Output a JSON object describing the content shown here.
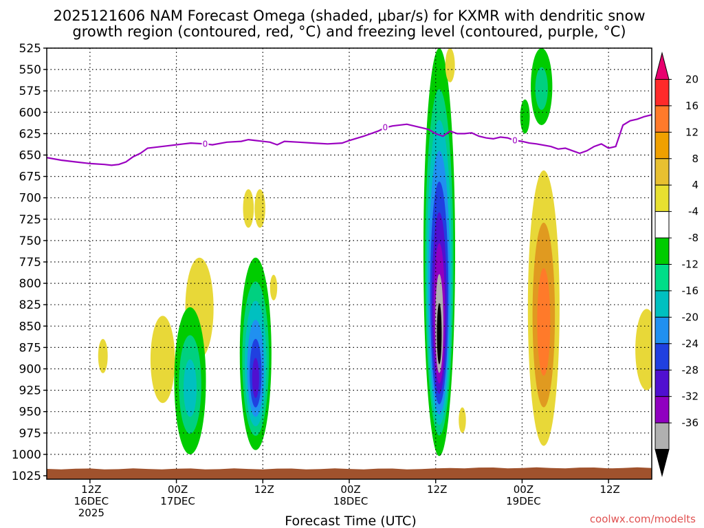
{
  "chart_data": {
    "type": "heatmap",
    "title_line1": "2025121606 NAM Forecast Omega (shaded, μbar/s) for KXMR with dendritic snow",
    "title_line2": "growth region (contoured, red, °C) and freezing level (contoured, purple, °C)",
    "xlabel": "Forecast Time (UTC)",
    "credit": "coolwx.com/modelts",
    "y_axis": {
      "label": "",
      "ticks": [
        "525",
        "550",
        "575",
        "600",
        "625",
        "650",
        "675",
        "700",
        "725",
        "750",
        "775",
        "800",
        "825",
        "850",
        "875",
        "900",
        "925",
        "950",
        "975",
        "1000",
        "1025"
      ],
      "range": [
        525,
        1025
      ],
      "inverted": true
    },
    "x_axis": {
      "range_hours": [
        0,
        84
      ],
      "ticks": [
        {
          "h": 6,
          "line1": "12Z",
          "line2": "16DEC",
          "line3": "2025"
        },
        {
          "h": 18,
          "line1": "00Z",
          "line2": "17DEC",
          "line3": ""
        },
        {
          "h": 30,
          "line1": "12Z",
          "line2": "",
          "line3": ""
        },
        {
          "h": 42,
          "line1": "00Z",
          "line2": "18DEC",
          "line3": ""
        },
        {
          "h": 54,
          "line1": "12Z",
          "line2": "",
          "line3": ""
        },
        {
          "h": 66,
          "line1": "00Z",
          "line2": "19DEC",
          "line3": ""
        },
        {
          "h": 78,
          "line1": "12Z",
          "line2": "",
          "line3": ""
        }
      ]
    },
    "grid": true,
    "colorbar": {
      "labels": [
        "20",
        "16",
        "12",
        "8",
        "4",
        "-4",
        "-8",
        "-12",
        "-16",
        "-20",
        "-24",
        "-28",
        "-32",
        "-36"
      ],
      "colors": [
        "#e8006e",
        "#ff2a2a",
        "#ff7a2a",
        "#f0a000",
        "#e8c030",
        "#e8e030",
        "#ffffff",
        "#00cc00",
        "#00dd88",
        "#00c0c0",
        "#2090f0",
        "#2040e0",
        "#5010d0",
        "#9000c0",
        "#b0b0b0",
        "#000000"
      ]
    },
    "freezing_level": {
      "color": "#9a00c0",
      "label": "0",
      "points_hour_hpa": [
        [
          0,
          653
        ],
        [
          2,
          656
        ],
        [
          4,
          658
        ],
        [
          6,
          660
        ],
        [
          8,
          661
        ],
        [
          9,
          662
        ],
        [
          10,
          661
        ],
        [
          11,
          658
        ],
        [
          12,
          652
        ],
        [
          13,
          648
        ],
        [
          14,
          642
        ],
        [
          15,
          641
        ],
        [
          17,
          639
        ],
        [
          19,
          637
        ],
        [
          20,
          636
        ],
        [
          22,
          637
        ],
        [
          23,
          638
        ],
        [
          25,
          635
        ],
        [
          27,
          634
        ],
        [
          28,
          632
        ],
        [
          29,
          633
        ],
        [
          31,
          635
        ],
        [
          32,
          638
        ],
        [
          33,
          634
        ],
        [
          35,
          635
        ],
        [
          37,
          636
        ],
        [
          39,
          637
        ],
        [
          41,
          636
        ],
        [
          42,
          633
        ],
        [
          44,
          628
        ],
        [
          46,
          622
        ],
        [
          47,
          618
        ],
        [
          48,
          616
        ],
        [
          50,
          614
        ],
        [
          52,
          618
        ],
        [
          53,
          620
        ],
        [
          54,
          625
        ],
        [
          55,
          628
        ],
        [
          56,
          622
        ],
        [
          57,
          625
        ],
        [
          58,
          625
        ],
        [
          59,
          624
        ],
        [
          60,
          628
        ],
        [
          61,
          630
        ],
        [
          62,
          631
        ],
        [
          63,
          629
        ],
        [
          64,
          630
        ],
        [
          65,
          633
        ],
        [
          66,
          634
        ],
        [
          67,
          636
        ],
        [
          68,
          637
        ],
        [
          70,
          640
        ],
        [
          71,
          643
        ],
        [
          72,
          642
        ],
        [
          73,
          645
        ],
        [
          74,
          648
        ],
        [
          75,
          645
        ],
        [
          76,
          640
        ],
        [
          77,
          637
        ],
        [
          78,
          642
        ],
        [
          79,
          640
        ],
        [
          80,
          615
        ],
        [
          81,
          610
        ],
        [
          82,
          608
        ],
        [
          83,
          605
        ],
        [
          84,
          603
        ]
      ]
    },
    "omega_features": [
      {
        "hour": 7.8,
        "top_hpa": 865,
        "bottom_hpa": 905,
        "peak": 6
      },
      {
        "hour": 16.1,
        "top_hpa": 838,
        "bottom_hpa": 940,
        "peak": 6
      },
      {
        "hour": 21.2,
        "top_hpa": 770,
        "bottom_hpa": 888,
        "peak": 5
      },
      {
        "hour": 28.0,
        "top_hpa": 690,
        "bottom_hpa": 735,
        "peak": 5
      },
      {
        "hour": 29.6,
        "top_hpa": 690,
        "bottom_hpa": 735,
        "peak": 5
      },
      {
        "hour": 31.5,
        "top_hpa": 790,
        "bottom_hpa": 820,
        "peak": 5
      },
      {
        "hour": 19.9,
        "top_hpa": 828,
        "bottom_hpa": 1000,
        "peak": -13
      },
      {
        "hour": 29.0,
        "top_hpa": 770,
        "bottom_hpa": 995,
        "peak": -25
      },
      {
        "hour": 54.5,
        "top_hpa": 525,
        "bottom_hpa": 1002,
        "peak": -36
      },
      {
        "hour": 56.0,
        "top_hpa": 525,
        "bottom_hpa": 565,
        "peak": 5
      },
      {
        "hour": 57.7,
        "top_hpa": 945,
        "bottom_hpa": 975,
        "peak": 5
      },
      {
        "hour": 68.7,
        "top_hpa": 525,
        "bottom_hpa": 615,
        "peak": -10
      },
      {
        "hour": 66.4,
        "top_hpa": 585,
        "bottom_hpa": 625,
        "peak": -6
      },
      {
        "hour": 69.0,
        "top_hpa": 668,
        "bottom_hpa": 990,
        "peak": 13
      },
      {
        "hour": 83.3,
        "top_hpa": 830,
        "bottom_hpa": 925,
        "peak": 5
      }
    ],
    "ground": {
      "color": "#a0522d",
      "surface_hpa": 1017
    }
  }
}
